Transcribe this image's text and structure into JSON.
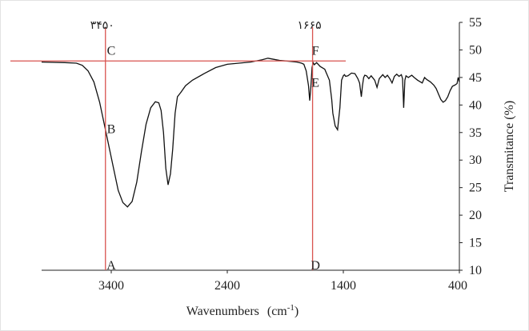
{
  "chart_data": {
    "type": "line",
    "title": "",
    "xlabel": "Wavenumbers",
    "xlabel_unit": "(cm",
    "xlabel_unit_sup": "-1",
    "xlabel_unit_close": ")",
    "ylabel": "Transmitance  (%)",
    "x_reversed": true,
    "xlim": [
      4000,
      400
    ],
    "ylim": [
      10,
      55
    ],
    "x_ticks": [
      {
        "value": 3400,
        "label": "3400"
      },
      {
        "value": 2400,
        "label": "2400"
      },
      {
        "value": 1400,
        "label": "1400"
      },
      {
        "value": 400,
        "label": "400"
      }
    ],
    "y_ticks": [
      10,
      15,
      20,
      25,
      30,
      35,
      40,
      45,
      50,
      55
    ],
    "series": [
      {
        "x": [
          4000,
          3800,
          3700,
          3650,
          3600,
          3550,
          3500,
          3460,
          3420,
          3380,
          3340,
          3300,
          3260,
          3220,
          3180,
          3140,
          3100,
          3060,
          3020,
          2990,
          2970,
          2950,
          2930,
          2910,
          2890,
          2870,
          2850,
          2830,
          2800,
          2760,
          2700,
          2600,
          2500,
          2400,
          2300,
          2200,
          2100,
          2050,
          2000,
          1950,
          1900,
          1850,
          1800,
          1760,
          1740,
          1720,
          1700,
          1690,
          1680,
          1670,
          1660,
          1650,
          1630,
          1600,
          1560,
          1520,
          1500,
          1490,
          1470,
          1450,
          1430,
          1415,
          1400,
          1390,
          1380,
          1360,
          1330,
          1300,
          1275,
          1260,
          1245,
          1235,
          1225,
          1215,
          1200,
          1180,
          1160,
          1130,
          1110,
          1090,
          1060,
          1040,
          1020,
          1000,
          980,
          960,
          940,
          920,
          900,
          890,
          880,
          870,
          860,
          840,
          810,
          790,
          760,
          720,
          700,
          680,
          650,
          620,
          600,
          580,
          560,
          540,
          520,
          500,
          480,
          460,
          440,
          420,
          410,
          400
        ],
        "y": [
          47.8,
          47.7,
          47.6,
          47.2,
          46.2,
          44.2,
          40.5,
          36.5,
          32.5,
          28.5,
          24.5,
          22.3,
          21.5,
          22.5,
          26.0,
          31.5,
          36.5,
          39.5,
          40.6,
          40.4,
          39.0,
          35.0,
          28.5,
          25.5,
          27.5,
          32.0,
          38.5,
          41.5,
          42.3,
          43.5,
          44.5,
          45.7,
          46.8,
          47.4,
          47.6,
          47.8,
          48.2,
          48.5,
          48.3,
          48.1,
          48.0,
          47.9,
          47.8,
          47.6,
          47.4,
          46.2,
          43.5,
          40.8,
          43.2,
          46.8,
          47.7,
          47.3,
          47.7,
          47.0,
          46.5,
          44.5,
          41.0,
          38.5,
          36.2,
          35.5,
          39.5,
          44.5,
          45.3,
          45.5,
          45.2,
          45.3,
          45.8,
          45.7,
          44.8,
          44.0,
          41.5,
          43.5,
          45.0,
          45.4,
          45.3,
          44.8,
          45.3,
          44.5,
          43.2,
          44.8,
          45.5,
          45.0,
          45.4,
          44.8,
          44.0,
          45.2,
          45.6,
          45.2,
          45.5,
          44.8,
          39.5,
          44.5,
          45.3,
          45.0,
          45.4,
          45.0,
          44.5,
          44.0,
          45.0,
          44.6,
          44.2,
          43.6,
          43.0,
          42.0,
          41.0,
          40.5,
          40.8,
          41.5,
          42.6,
          43.4,
          43.6,
          43.9,
          45.0,
          44.2
        ]
      }
    ],
    "reference_lines": [
      {
        "orientation": "vertical",
        "x": 3450,
        "top_label": "٣۴۵٠",
        "color": "#d9534f"
      },
      {
        "orientation": "vertical",
        "x": 1665,
        "top_label": "١۶۶۵",
        "color": "#d9534f"
      },
      {
        "orientation": "horizontal",
        "y": 48.0,
        "color": "#d9534f"
      }
    ],
    "point_labels": [
      {
        "text": "C",
        "x": 3400,
        "y": 50.0
      },
      {
        "text": "B",
        "x": 3400,
        "y": 35.8
      },
      {
        "text": "A",
        "x": 3400,
        "y": 11.0
      },
      {
        "text": "F",
        "x": 1640,
        "y": 50.0
      },
      {
        "text": "E",
        "x": 1640,
        "y": 44.2
      },
      {
        "text": "D",
        "x": 1640,
        "y": 11.0
      }
    ],
    "grid": false,
    "legend": "none",
    "colors": {
      "line": "#111111",
      "reference": "#d9534f",
      "axis": "#222222"
    }
  }
}
